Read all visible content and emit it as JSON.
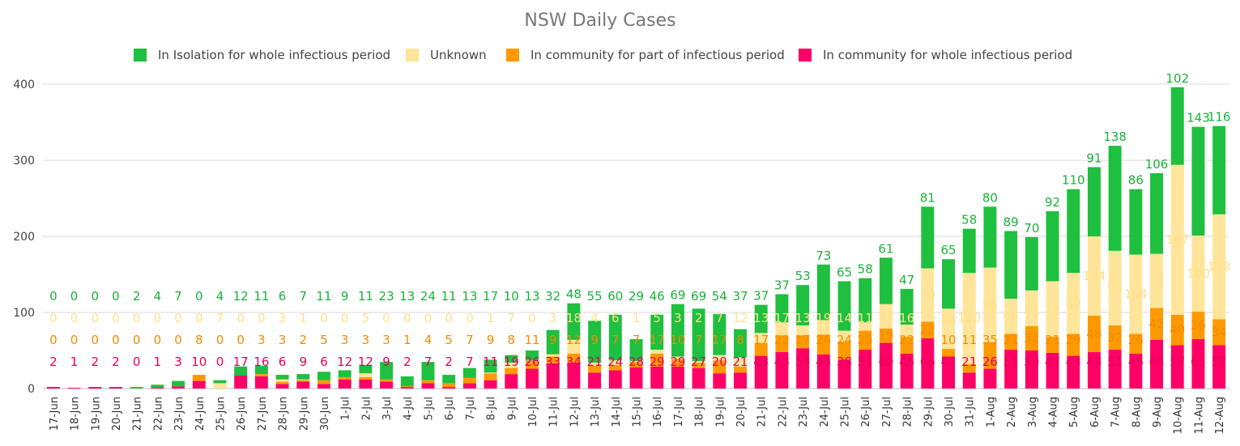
{
  "chart_data": {
    "type": "bar",
    "stacked": true,
    "title": "NSW Daily Cases",
    "xlabel": "",
    "ylabel": "",
    "ylim": [
      0,
      400
    ],
    "yticks": [
      0,
      100,
      200,
      300,
      400
    ],
    "grid": true,
    "legend_position": "top",
    "categories": [
      "17-Jun",
      "18-Jun",
      "19-Jun",
      "20-Jun",
      "21-Jun",
      "22-Jun",
      "23-Jun",
      "24-Jun",
      "25-Jun",
      "26-Jun",
      "27-Jun",
      "28-Jun",
      "29-Jun",
      "30-Jun",
      "1-Jul",
      "2-Jul",
      "3-Jul",
      "4-Jul",
      "5-Jul",
      "6-Jul",
      "7-Jul",
      "8-Jul",
      "9-Jul",
      "10-Jul",
      "11-Jul",
      "12-Jul",
      "13-Jul",
      "14-Jul",
      "15-Jul",
      "16-Jul",
      "17-Jul",
      "18-Jul",
      "19-Jul",
      "20-Jul",
      "21-Jul",
      "22-Jul",
      "23-Jul",
      "24-Jul",
      "25-Jul",
      "26-Jul",
      "27-Jul",
      "28-Jul",
      "29-Jul",
      "30-Jul",
      "31-Jul",
      "1-Aug",
      "2-Aug",
      "3-Aug",
      "4-Aug",
      "5-Aug",
      "6-Aug",
      "7-Aug",
      "8-Aug",
      "9-Aug",
      "10-Aug",
      "11-Aug",
      "12-Aug"
    ],
    "series": [
      {
        "name": "In community for whole infectious period",
        "color": "#ff0066",
        "label_color": "#e8005c",
        "values": [
          2,
          1,
          2,
          2,
          0,
          1,
          3,
          10,
          0,
          17,
          16,
          6,
          9,
          6,
          12,
          12,
          9,
          2,
          7,
          2,
          7,
          11,
          19,
          26,
          33,
          34,
          21,
          24,
          28,
          29,
          29,
          27,
          20,
          21,
          43,
          48,
          53,
          45,
          38,
          51,
          60,
          46,
          66,
          42,
          21,
          26,
          51,
          50,
          47,
          43,
          48,
          51,
          46,
          64,
          57,
          65,
          57
        ]
      },
      {
        "name": "In community for part of infectious period",
        "color": "#ff9900",
        "label_color": "#f28c00",
        "values": [
          0,
          0,
          0,
          0,
          0,
          0,
          0,
          8,
          0,
          0,
          3,
          3,
          2,
          5,
          3,
          3,
          3,
          1,
          4,
          5,
          7,
          9,
          8,
          11,
          9,
          12,
          9,
          7,
          7,
          17,
          10,
          7,
          17,
          8,
          17,
          22,
          17,
          26,
          24,
          25,
          19,
          22,
          22,
          10,
          11,
          35,
          21,
          32,
          21,
          29,
          48,
          32,
          26,
          42,
          40,
          36,
          34
        ]
      },
      {
        "name": "Unknown",
        "color": "#ffe599",
        "label_color": "#ffe08a",
        "values": [
          0,
          0,
          0,
          0,
          0,
          0,
          0,
          0,
          7,
          0,
          0,
          3,
          1,
          0,
          0,
          5,
          0,
          0,
          0,
          0,
          0,
          1,
          7,
          0,
          3,
          18,
          4,
          6,
          1,
          5,
          3,
          2,
          7,
          12,
          13,
          17,
          13,
          19,
          14,
          11,
          32,
          16,
          70,
          53,
          120,
          98,
          46,
          47,
          73,
          80,
          104,
          98,
          104,
          71,
          197,
          100,
          138
        ]
      },
      {
        "name": "In Isolation for whole infectious period",
        "color": "#1fbf3f",
        "label_color": "#19b338",
        "values": [
          0,
          0,
          0,
          0,
          2,
          4,
          7,
          0,
          4,
          12,
          11,
          6,
          7,
          11,
          9,
          11,
          23,
          13,
          24,
          11,
          13,
          17,
          10,
          13,
          32,
          48,
          55,
          60,
          29,
          46,
          69,
          69,
          54,
          37,
          37,
          37,
          53,
          73,
          65,
          58,
          61,
          47,
          81,
          65,
          58,
          80,
          89,
          70,
          92,
          110,
          91,
          138,
          86,
          106,
          102,
          143,
          116
        ]
      }
    ],
    "stack_order": [
      "In community for whole infectious period",
      "In community for part of infectious period",
      "Unknown",
      "In Isolation for whole infectious period"
    ],
    "legend_order": [
      "In Isolation for whole infectious period",
      "Unknown",
      "In community for part of infectious period",
      "In community for whole infectious period"
    ]
  }
}
